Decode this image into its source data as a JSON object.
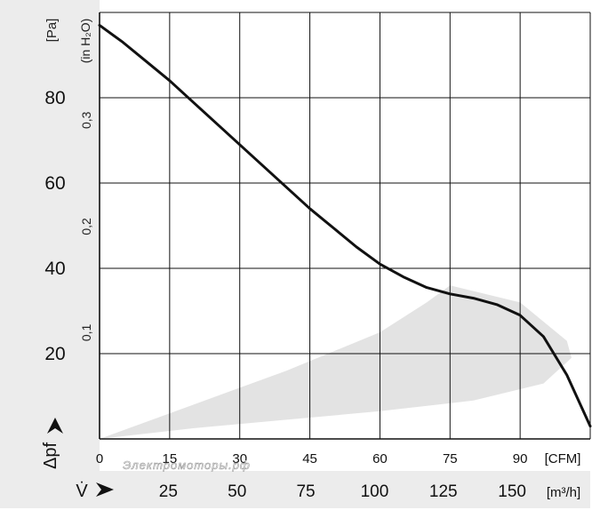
{
  "chart_data": {
    "type": "line",
    "title": "",
    "xlabel_cfm": "[CFM]",
    "xlabel_m3h": "[m³/h]",
    "x_axis_symbol": "V̇",
    "ylabel_pa": "[Pa]",
    "ylabel_inh2o": "(in H₂O)",
    "y_axis_symbol": "Δpf",
    "xlim_cfm": [
      0,
      105
    ],
    "ylim_pa": [
      0,
      100
    ],
    "x_ticks_cfm": [
      "0",
      "15",
      "30",
      "45",
      "60",
      "75",
      "90"
    ],
    "x_tick_values_cfm": [
      0,
      15,
      30,
      45,
      60,
      75,
      90
    ],
    "x_ticks_m3h": [
      "25",
      "50",
      "75",
      "100",
      "125",
      "150"
    ],
    "x_tick_values_m3h": [
      25,
      50,
      75,
      100,
      125,
      150
    ],
    "y_ticks_pa": [
      "20",
      "40",
      "60",
      "80"
    ],
    "y_tick_values_pa": [
      20,
      40,
      60,
      80
    ],
    "y_ticks_inh2o": [
      "0,1",
      "0,2",
      "0,3"
    ],
    "y_tick_values_inh2o": [
      0.1,
      0.2,
      0.3
    ],
    "grid": true,
    "series": [
      {
        "x": [
          0,
          5,
          10,
          15,
          20,
          25,
          30,
          35,
          40,
          45,
          50,
          55,
          60,
          65,
          70,
          75,
          80,
          85,
          90,
          95,
          100,
          105
        ],
        "y": [
          97,
          93,
          88.5,
          84,
          79,
          74,
          69,
          64,
          59,
          54,
          49.5,
          45,
          41,
          38,
          35.5,
          34,
          33,
          31.5,
          29,
          24,
          15,
          3
        ],
        "color": "#111111"
      }
    ],
    "shaded_region": {
      "color": "#e3e3e3",
      "x": [
        0,
        20,
        40,
        60,
        70,
        75,
        90,
        100,
        101,
        95,
        80,
        60,
        40,
        20,
        0
      ],
      "y": [
        0,
        8,
        16,
        25,
        32,
        36,
        32,
        23,
        19,
        13,
        9,
        6.5,
        4.5,
        2.5,
        0
      ]
    },
    "watermark": "Электромоторы.рф"
  }
}
